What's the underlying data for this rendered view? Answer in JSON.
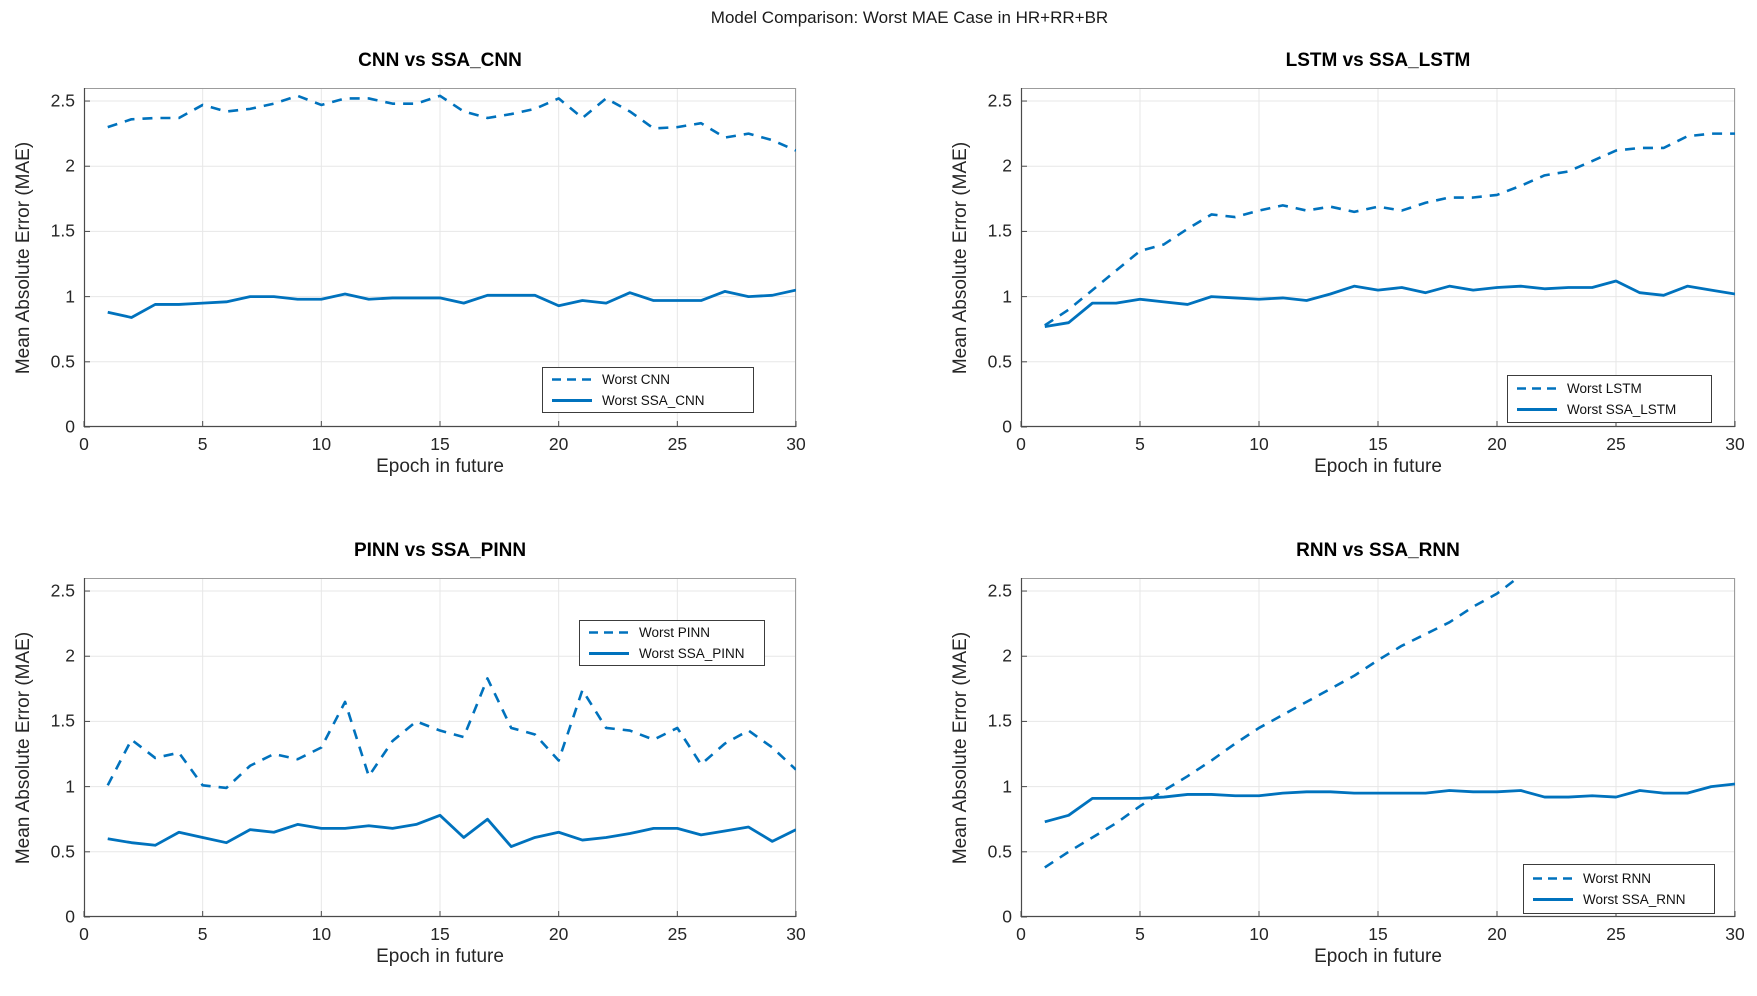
{
  "page_title": "Model Comparison: Worst MAE Case in HR+RR+BR",
  "colors": {
    "series_blue": "#0072BD",
    "grid": "#e7e7e7",
    "box_border": "#9c9c9c",
    "axis": "#4a4a4a",
    "tick_text": "#262626",
    "legend_border": "#3c3c3c",
    "background": "#ffffff"
  },
  "chart_data": [
    {
      "type": "line",
      "title": "CNN vs SSA_CNN",
      "xlabel": "Epoch in future",
      "ylabel": "Mean Absolute Error (MAE)",
      "xlim": [
        0,
        30
      ],
      "ylim": [
        0,
        2.6
      ],
      "xticks": [
        0,
        5,
        10,
        15,
        20,
        25,
        30
      ],
      "xtick_labels": [
        "0",
        "5",
        "10",
        "15",
        "20",
        "25",
        "30"
      ],
      "yticks": [
        0,
        0.5,
        1,
        1.5,
        2,
        2.5
      ],
      "ytick_labels": [
        "0",
        "0.5",
        "1",
        "1.5",
        "2",
        "2.5"
      ],
      "grid": true,
      "legend_position": "bottom-right",
      "x": [
        1,
        2,
        3,
        4,
        5,
        6,
        7,
        8,
        9,
        10,
        11,
        12,
        13,
        14,
        15,
        16,
        17,
        18,
        19,
        20,
        21,
        22,
        23,
        24,
        25,
        26,
        27,
        28,
        29,
        30
      ],
      "series": [
        {
          "name": "Worst CNN",
          "style": "dashed",
          "color": "#0072BD",
          "values": [
            2.3,
            2.36,
            2.37,
            2.37,
            2.47,
            2.42,
            2.44,
            2.48,
            2.54,
            2.47,
            2.52,
            2.52,
            2.48,
            2.48,
            2.54,
            2.42,
            2.37,
            2.4,
            2.44,
            2.52,
            2.37,
            2.52,
            2.42,
            2.29,
            2.3,
            2.33,
            2.22,
            2.25,
            2.2,
            2.12
          ]
        },
        {
          "name": "Worst SSA_CNN",
          "style": "solid",
          "color": "#0072BD",
          "values": [
            0.88,
            0.84,
            0.94,
            0.94,
            0.95,
            0.96,
            1.0,
            1.0,
            0.98,
            0.98,
            1.02,
            0.98,
            0.99,
            0.99,
            0.99,
            0.95,
            1.01,
            1.01,
            1.01,
            0.93,
            0.97,
            0.95,
            1.03,
            0.97,
            0.97,
            0.97,
            1.04,
            1.0,
            1.01,
            1.05
          ]
        }
      ]
    },
    {
      "type": "line",
      "title": "LSTM vs SSA_LSTM",
      "xlabel": "Epoch in future",
      "ylabel": "Mean Absolute Error (MAE)",
      "xlim": [
        0,
        30
      ],
      "ylim": [
        0,
        2.6
      ],
      "xticks": [
        0,
        5,
        10,
        15,
        20,
        25,
        30
      ],
      "xtick_labels": [
        "0",
        "5",
        "10",
        "15",
        "20",
        "25",
        "30"
      ],
      "yticks": [
        0,
        0.5,
        1,
        1.5,
        2,
        2.5
      ],
      "ytick_labels": [
        "0",
        "0.5",
        "1",
        "1.5",
        "2",
        "2.5"
      ],
      "grid": true,
      "legend_position": "bottom-right",
      "x": [
        1,
        2,
        3,
        4,
        5,
        6,
        7,
        8,
        9,
        10,
        11,
        12,
        13,
        14,
        15,
        16,
        17,
        18,
        19,
        20,
        21,
        22,
        23,
        24,
        25,
        26,
        27,
        28,
        29,
        30
      ],
      "series": [
        {
          "name": "Worst LSTM",
          "style": "dashed",
          "color": "#0072BD",
          "values": [
            0.78,
            0.9,
            1.05,
            1.2,
            1.35,
            1.4,
            1.52,
            1.63,
            1.61,
            1.66,
            1.7,
            1.66,
            1.69,
            1.65,
            1.69,
            1.66,
            1.72,
            1.76,
            1.76,
            1.78,
            1.85,
            1.93,
            1.96,
            2.04,
            2.12,
            2.14,
            2.14,
            2.23,
            2.25,
            2.25
          ]
        },
        {
          "name": "Worst SSA_LSTM",
          "style": "solid",
          "color": "#0072BD",
          "values": [
            0.77,
            0.8,
            0.95,
            0.95,
            0.98,
            0.96,
            0.94,
            1.0,
            0.99,
            0.98,
            0.99,
            0.97,
            1.02,
            1.08,
            1.05,
            1.07,
            1.03,
            1.08,
            1.05,
            1.07,
            1.08,
            1.06,
            1.07,
            1.07,
            1.12,
            1.03,
            1.01,
            1.08,
            1.05,
            1.02
          ]
        }
      ]
    },
    {
      "type": "line",
      "title": "PINN vs SSA_PINN",
      "xlabel": "Epoch in future",
      "ylabel": "Mean Absolute Error (MAE)",
      "xlim": [
        0,
        30
      ],
      "ylim": [
        0,
        2.6
      ],
      "xticks": [
        0,
        5,
        10,
        15,
        20,
        25,
        30
      ],
      "xtick_labels": [
        "0",
        "5",
        "10",
        "15",
        "20",
        "25",
        "30"
      ],
      "yticks": [
        0,
        0.5,
        1,
        1.5,
        2,
        2.5
      ],
      "ytick_labels": [
        "0",
        "0.5",
        "1",
        "1.5",
        "2",
        "2.5"
      ],
      "grid": true,
      "legend_position": "top-right",
      "x": [
        1,
        2,
        3,
        4,
        5,
        6,
        7,
        8,
        9,
        10,
        11,
        12,
        13,
        14,
        15,
        16,
        17,
        18,
        19,
        20,
        21,
        22,
        23,
        24,
        25,
        26,
        27,
        28,
        29,
        30
      ],
      "series": [
        {
          "name": "Worst PINN",
          "style": "dashed",
          "color": "#0072BD",
          "values": [
            1.01,
            1.36,
            1.22,
            1.26,
            1.01,
            0.99,
            1.16,
            1.25,
            1.21,
            1.3,
            1.65,
            1.08,
            1.35,
            1.5,
            1.43,
            1.38,
            1.83,
            1.45,
            1.4,
            1.2,
            1.74,
            1.45,
            1.43,
            1.36,
            1.45,
            1.17,
            1.33,
            1.43,
            1.3,
            1.13
          ]
        },
        {
          "name": "Worst SSA_PINN",
          "style": "solid",
          "color": "#0072BD",
          "values": [
            0.6,
            0.57,
            0.55,
            0.65,
            0.61,
            0.57,
            0.67,
            0.65,
            0.71,
            0.68,
            0.68,
            0.7,
            0.68,
            0.71,
            0.78,
            0.61,
            0.75,
            0.54,
            0.61,
            0.65,
            0.59,
            0.61,
            0.64,
            0.68,
            0.68,
            0.63,
            0.66,
            0.69,
            0.58,
            0.67
          ]
        }
      ]
    },
    {
      "type": "line",
      "title": "RNN vs SSA_RNN",
      "xlabel": "Epoch in future",
      "ylabel": "Mean Absolute Error (MAE)",
      "xlim": [
        0,
        30
      ],
      "ylim": [
        0,
        2.6
      ],
      "xticks": [
        0,
        5,
        10,
        15,
        20,
        25,
        30
      ],
      "xtick_labels": [
        "0",
        "5",
        "10",
        "15",
        "20",
        "25",
        "30"
      ],
      "yticks": [
        0,
        0.5,
        1,
        1.5,
        2,
        2.5
      ],
      "ytick_labels": [
        "0",
        "0.5",
        "1",
        "1.5",
        "2",
        "2.5"
      ],
      "grid": true,
      "legend_position": "bottom-right",
      "x": [
        1,
        2,
        3,
        4,
        5,
        6,
        7,
        8,
        9,
        10,
        11,
        12,
        13,
        14,
        15,
        16,
        17,
        18,
        19,
        20,
        21,
        22,
        23,
        24,
        25,
        26,
        27,
        28,
        29,
        30
      ],
      "series": [
        {
          "name": "Worst RNN",
          "style": "dashed",
          "color": "#0072BD",
          "x": [
            1,
            2,
            3,
            4,
            5,
            6,
            7,
            8,
            9,
            10,
            11,
            12,
            13,
            14,
            15,
            16,
            17,
            18,
            19,
            20,
            21
          ],
          "values": [
            0.38,
            0.5,
            0.61,
            0.72,
            0.85,
            0.97,
            1.08,
            1.2,
            1.33,
            1.45,
            1.55,
            1.65,
            1.75,
            1.85,
            1.97,
            2.08,
            2.17,
            2.26,
            2.38,
            2.48,
            2.62
          ]
        },
        {
          "name": "Worst SSA_RNN",
          "style": "solid",
          "color": "#0072BD",
          "values": [
            0.73,
            0.78,
            0.91,
            0.91,
            0.91,
            0.92,
            0.94,
            0.94,
            0.93,
            0.93,
            0.95,
            0.96,
            0.96,
            0.95,
            0.95,
            0.95,
            0.95,
            0.97,
            0.96,
            0.96,
            0.97,
            0.92,
            0.92,
            0.93,
            0.92,
            0.97,
            0.95,
            0.95,
            1.0,
            1.02
          ]
        }
      ]
    }
  ]
}
